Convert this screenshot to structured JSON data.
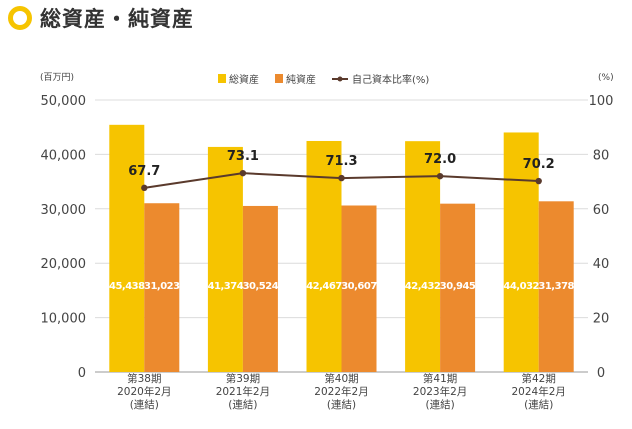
{
  "header": {
    "title": "総資産・純資産"
  },
  "chart_data": {
    "type": "bar",
    "categories": [
      [
        "第38期",
        "2020年2月",
        "(連結)"
      ],
      [
        "第39期",
        "2021年2月",
        "(連結)"
      ],
      [
        "第40期",
        "2022年2月",
        "(連結)"
      ],
      [
        "第41期",
        "2023年2月",
        "(連結)"
      ],
      [
        "第42期",
        "2024年2月",
        "(連結)"
      ]
    ],
    "series": [
      {
        "name": "総資産",
        "type": "bar",
        "color": "#f6c400",
        "values": [
          45438,
          41374,
          42467,
          42432,
          44032
        ],
        "labels": [
          "45,438",
          "41,374",
          "42,467",
          "42,432",
          "44,032"
        ]
      },
      {
        "name": "純資産",
        "type": "bar",
        "color": "#ec8a2e",
        "values": [
          31023,
          30524,
          30607,
          30945,
          31378
        ],
        "labels": [
          "31,023",
          "30,524",
          "30,607",
          "30,945",
          "31,378"
        ]
      },
      {
        "name": "自己資本比率(%)",
        "type": "line",
        "color": "#5a3a2c",
        "axis": "right",
        "values": [
          67.7,
          73.1,
          71.3,
          72.0,
          70.2
        ],
        "labels": [
          "67.7",
          "73.1",
          "71.3",
          "72.0",
          "70.2"
        ]
      }
    ],
    "y_left": {
      "unit": "(百万円)",
      "ylim": [
        0,
        50000
      ],
      "ticks": [
        "0",
        "10,000",
        "20,000",
        "30,000",
        "40,000",
        "50,000"
      ]
    },
    "y_right": {
      "unit": "(%)",
      "ylim": [
        0,
        100
      ],
      "ticks": [
        "0",
        "20",
        "40",
        "60",
        "80",
        "100"
      ]
    },
    "grid": true,
    "legend_position": "top-center"
  }
}
